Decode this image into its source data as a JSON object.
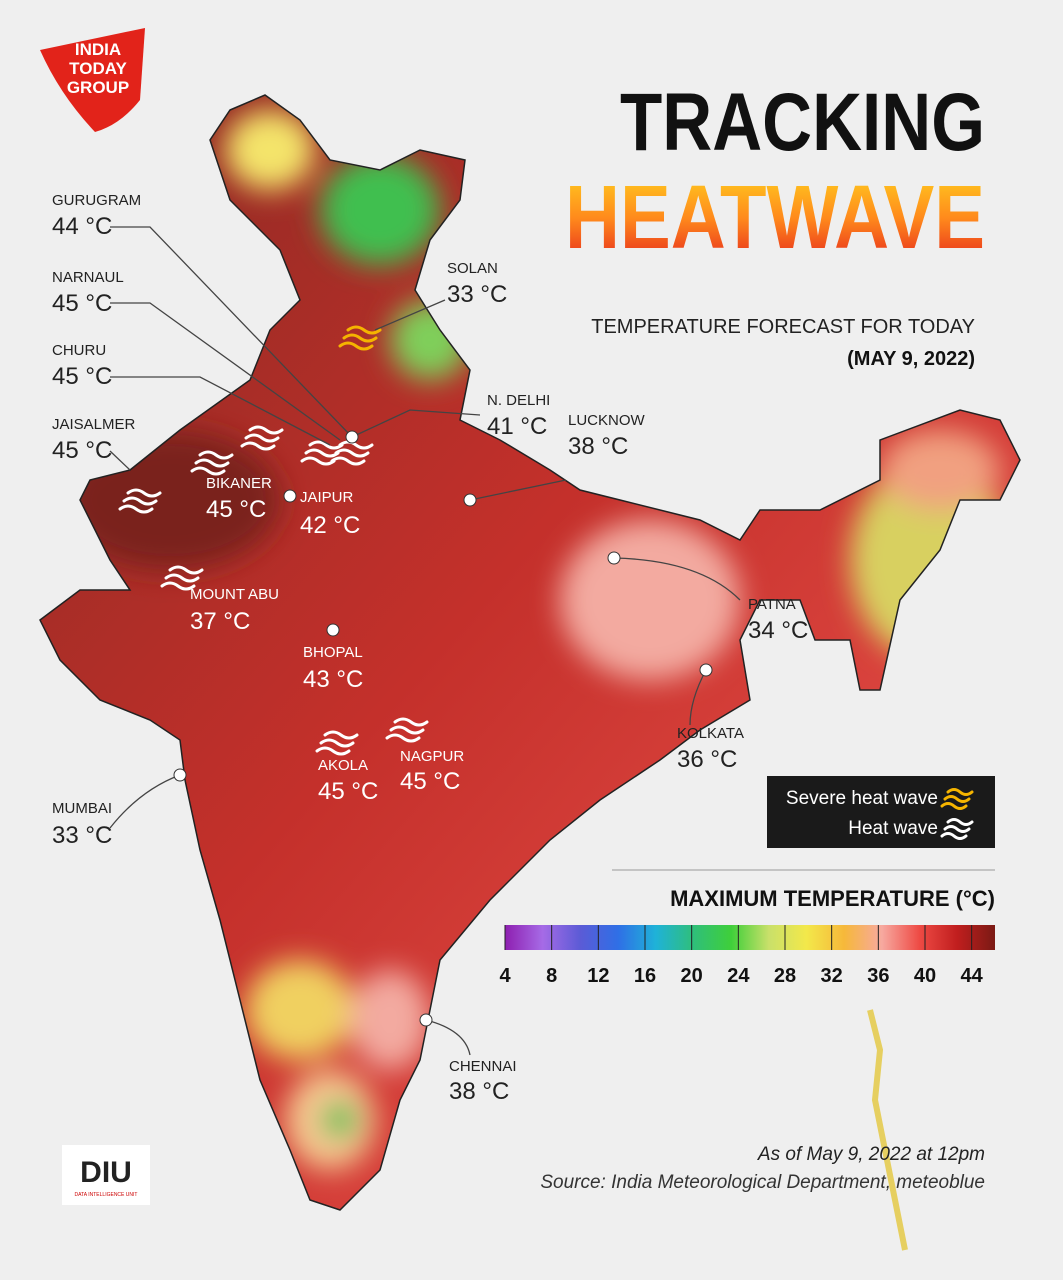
{
  "header": {
    "logo": [
      "INDIA",
      "TODAY",
      "GROUP"
    ],
    "title": "TRACKING",
    "title_highlight": "HEATWAVE",
    "subtitle": "TEMPERATURE FORECAST FOR TODAY",
    "date": "(MAY 9, 2022)"
  },
  "cities": [
    {
      "name": "GURUGRAM",
      "temp": "44 °C"
    },
    {
      "name": "NARNAUL",
      "temp": "45 °C"
    },
    {
      "name": "CHURU",
      "temp": "45 °C"
    },
    {
      "name": "JAISALMER",
      "temp": "45 °C"
    },
    {
      "name": "SOLAN",
      "temp": "33 °C"
    },
    {
      "name": "N. DELHI",
      "temp": "41 °C"
    },
    {
      "name": "LUCKNOW",
      "temp": "38 °C"
    },
    {
      "name": "BIKANER",
      "temp": "45 °C"
    },
    {
      "name": "JAIPUR",
      "temp": "42 °C"
    },
    {
      "name": "MOUNT ABU",
      "temp": "37 °C"
    },
    {
      "name": "BHOPAL",
      "temp": "43 °C"
    },
    {
      "name": "AKOLA",
      "temp": "45 °C"
    },
    {
      "name": "NAGPUR",
      "temp": "45 °C"
    },
    {
      "name": "PATNA",
      "temp": "34 °C"
    },
    {
      "name": "KOLKATA",
      "temp": "36 °C"
    },
    {
      "name": "MUMBAI",
      "temp": "33 °C"
    },
    {
      "name": "CHENNAI",
      "temp": "38 °C"
    }
  ],
  "legend": {
    "severe": "Severe heat wave",
    "normal": "Heat wave"
  },
  "colorbar": {
    "title": "MAXIMUM TEMPERATURE (°C)",
    "range": [
      4,
      46
    ],
    "ticks": [
      4,
      8,
      12,
      16,
      20,
      24,
      28,
      32,
      36,
      40,
      44
    ],
    "colors": [
      "#8e1fb0",
      "#a66be6",
      "#5b5bd6",
      "#2f6fe6",
      "#1fb2d8",
      "#2fbf7a",
      "#3fcf3a",
      "#c9e06a",
      "#f3e84a",
      "#f6b83a",
      "#f7a9a0",
      "#ee4a44",
      "#c01e1e",
      "#7a1a14"
    ]
  },
  "footer": {
    "asof": "As of May 9, 2022 at 12pm",
    "source": "Source: India Meteorological Department, meteoblue",
    "diu": "DIU",
    "diu_sub": "DATA INTELLIGENCE UNIT"
  }
}
